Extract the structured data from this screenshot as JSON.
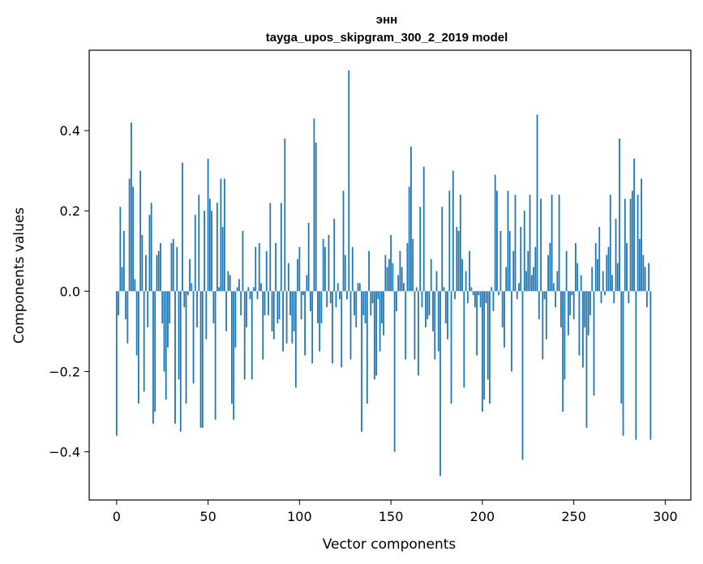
{
  "chart_data": {
    "type": "bar",
    "title": "энн",
    "subtitle": "tayga_upos_skipgram_300_2_2019 model",
    "xlabel": "Vector components",
    "ylabel": "Components values",
    "xlim": [
      -15,
      314
    ],
    "ylim": [
      -0.52,
      0.6
    ],
    "xticks": [
      0,
      50,
      100,
      150,
      200,
      250,
      300
    ],
    "yticks": [
      -0.4,
      -0.2,
      0.0,
      0.2,
      0.4
    ],
    "ytick_labels": [
      "−0.4",
      "−0.2",
      "0.0",
      "0.2",
      "0.4"
    ],
    "bar_color": "#1f77b4",
    "values": [
      -0.36,
      -0.06,
      0.21,
      0.06,
      0.15,
      -0.07,
      -0.13,
      0.28,
      0.42,
      0.26,
      0.03,
      -0.16,
      -0.28,
      0.3,
      0.14,
      -0.25,
      0.09,
      -0.09,
      0.19,
      0.22,
      -0.33,
      -0.3,
      0.09,
      0.1,
      0.12,
      -0.08,
      -0.2,
      -0.27,
      -0.14,
      -0.08,
      0.12,
      0.13,
      -0.33,
      0.11,
      -0.22,
      -0.35,
      0.32,
      -0.04,
      -0.28,
      -0.01,
      0.08,
      0.02,
      -0.23,
      0.19,
      -0.09,
      0.24,
      -0.34,
      -0.34,
      0.2,
      -0.12,
      0.33,
      0.23,
      0.2,
      -0.08,
      -0.32,
      0.22,
      0.01,
      0.28,
      0.16,
      0.28,
      -0.1,
      0.05,
      0.04,
      -0.28,
      -0.32,
      -0.14,
      0.01,
      0.03,
      -0.06,
      0.15,
      -0.22,
      -0.09,
      0.01,
      -0.02,
      -0.22,
      0.01,
      0.11,
      -0.02,
      0.12,
      0.02,
      -0.17,
      -0.06,
      0.1,
      -0.06,
      0.22,
      -0.1,
      -0.12,
      0.12,
      -0.08,
      -0.07,
      0.22,
      -0.15,
      0.38,
      -0.13,
      0.07,
      -0.06,
      -0.13,
      -0.1,
      -0.24,
      0.08,
      0.11,
      -0.07,
      -0.01,
      -0.16,
      0.04,
      0.17,
      -0.05,
      -0.18,
      0.43,
      0.37,
      -0.08,
      -0.15,
      -0.08,
      0.13,
      0.11,
      -0.04,
      0.14,
      -0.03,
      -0.18,
      0.18,
      -0.04,
      0.02,
      -0.02,
      -0.19,
      0.25,
      0.09,
      -0.02,
      0.55,
      -0.17,
      0.11,
      -0.06,
      -0.09,
      0.02,
      0.02,
      -0.35,
      -0.06,
      -0.08,
      -0.28,
      0.1,
      -0.06,
      -0.03,
      -0.22,
      -0.21,
      -0.02,
      -0.15,
      -0.08,
      -0.11,
      0.09,
      0.06,
      0.08,
      0.14,
      0.07,
      -0.4,
      -0.05,
      0.04,
      0.1,
      0.06,
      0.02,
      -0.17,
      0.12,
      0.26,
      0.36,
      0.13,
      -0.17,
      0.01,
      -0.21,
      0.21,
      -0.04,
      0.31,
      -0.09,
      -0.07,
      -0.06,
      0.08,
      -0.1,
      -0.17,
      0.05,
      -0.15,
      -0.46,
      0.21,
      0.01,
      -0.08,
      -0.12,
      0.25,
      -0.28,
      0.3,
      -0.02,
      0.16,
      0.15,
      0.24,
      0.08,
      -0.24,
      0.05,
      -0.03,
      0.1,
      0.01,
      -0.01,
      -0.04,
      -0.16,
      -0.01,
      -0.04,
      -0.3,
      -0.27,
      -0.03,
      -0.22,
      -0.28,
      0.01,
      -0.05,
      0.29,
      0.25,
      -0.01,
      0.15,
      -0.09,
      -0.14,
      0.06,
      0.25,
      0.15,
      -0.2,
      0.1,
      0.24,
      -0.02,
      0.02,
      0.16,
      -0.42,
      0.2,
      0.05,
      0.1,
      0.24,
      0.04,
      0.06,
      0.11,
      0.44,
      -0.07,
      0.23,
      -0.17,
      -0.02,
      -0.12,
      0.09,
      0.12,
      0.24,
      0.02,
      -0.04,
      0.05,
      0.24,
      -0.09,
      -0.3,
      -0.22,
      0.1,
      -0.11,
      -0.06,
      -0.01,
      -0.07,
      0.12,
      0.07,
      -0.16,
      0.04,
      -0.19,
      -0.09,
      -0.34,
      -0.11,
      -0.06,
      0.06,
      -0.26,
      0.12,
      0.08,
      0.16,
      -0.03,
      0.05,
      -0.01,
      0.09,
      0.11,
      0.24,
      0.04,
      -0.03,
      0.18,
      0.07,
      0.38,
      -0.28,
      -0.36,
      0.23,
      0.12,
      -0.03,
      0.23,
      0.25,
      0.33,
      -0.37,
      0.24,
      0.13,
      0.28,
      0.09,
      0.06,
      -0.04,
      0.07,
      -0.37
    ]
  }
}
